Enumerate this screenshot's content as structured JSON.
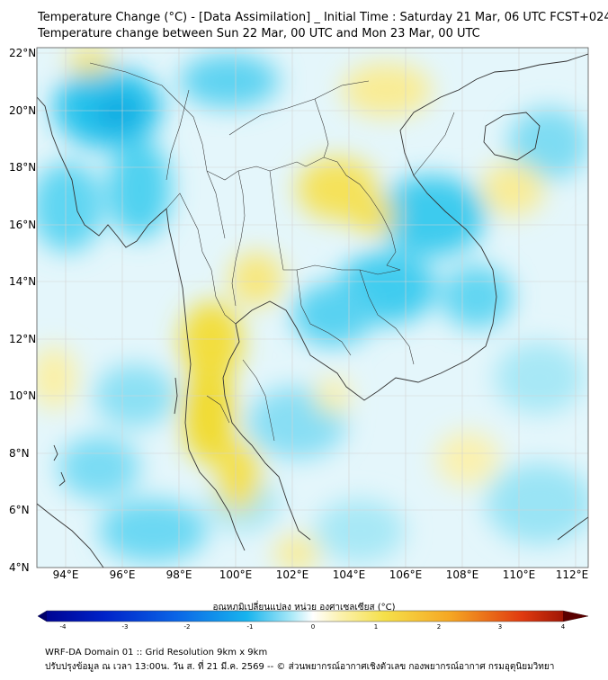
{
  "header": {
    "line1": "Temperature Change (°C) - [Data Assimilation] _ Initial Time : Saturday 21 Mar, 06 UTC FCST+024",
    "line2": "Temperature change between Sun 22 Mar, 00 UTC and Mon 23 Mar, 00 UTC"
  },
  "map": {
    "lon_range": [
      93,
      112.5
    ],
    "lat_range": [
      4,
      22.2
    ],
    "lat_labels": [
      "22°N",
      "20°N",
      "18°N",
      "16°N",
      "14°N",
      "12°N",
      "10°N",
      "8°N",
      "6°N",
      "4°N"
    ],
    "lon_labels": [
      "94°E",
      "96°E",
      "98°E",
      "100°E",
      "102°E",
      "104°E",
      "106°E",
      "108°E",
      "110°E",
      "112°E"
    ],
    "colors": {
      "cool": "#2fc8ee",
      "neutral": "#ffffff",
      "warm": "#f5e04a",
      "coast": "#333333"
    }
  },
  "colorbar": {
    "title": "อุณหภูมิเปลี่ยนแปลง หน่วย องศาเซลเซียส (°C)",
    "ticks": [
      "-4",
      "-3",
      "-2",
      "-1",
      "0",
      "1",
      "2",
      "3",
      "4"
    ],
    "range": [
      -4,
      4
    ]
  },
  "footer": {
    "line1": "WRF-DA Domain 01 :: Grid Resolution 9km x 9km",
    "line2": "ปรับปรุงข้อมูล ณ เวลา 13:00น. วัน ส. ที่ 21 มี.ค. 2569 -- © ส่วนพยากรณ์อากาศเชิงตัวเลข กองพยากรณ์อากาศ กรมอุตุนิยมวิทยา"
  }
}
